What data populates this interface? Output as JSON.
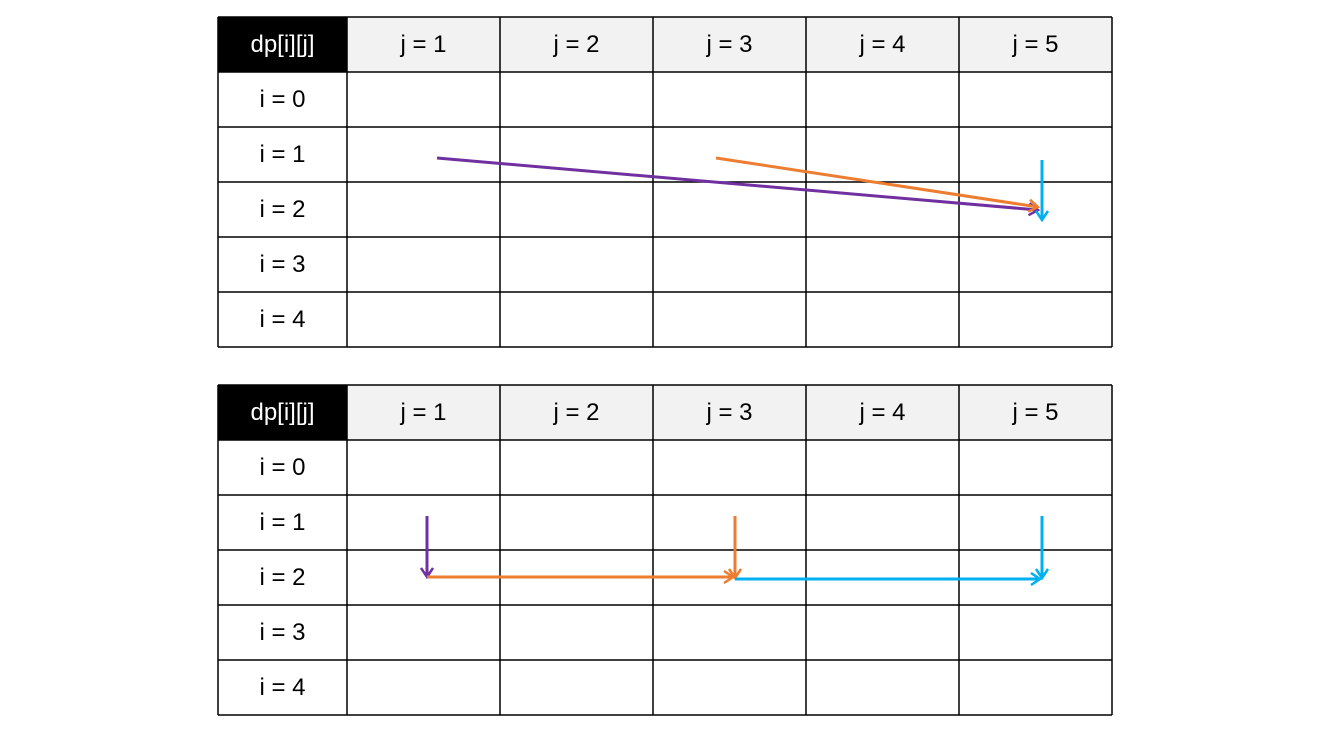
{
  "tables": [
    {
      "corner": "dp[i][j]",
      "columns": [
        "j = 1",
        "j = 2",
        "j = 3",
        "j = 4",
        "j = 5"
      ],
      "rows": [
        "i = 0",
        "i = 1",
        "i = 2",
        "i = 3",
        "i = 4"
      ]
    },
    {
      "corner": "dp[i][j]",
      "columns": [
        "j = 1",
        "j = 2",
        "j = 3",
        "j = 4",
        "j = 5"
      ],
      "rows": [
        "i = 0",
        "i = 1",
        "i = 2",
        "i = 3",
        "i = 4"
      ]
    }
  ]
}
